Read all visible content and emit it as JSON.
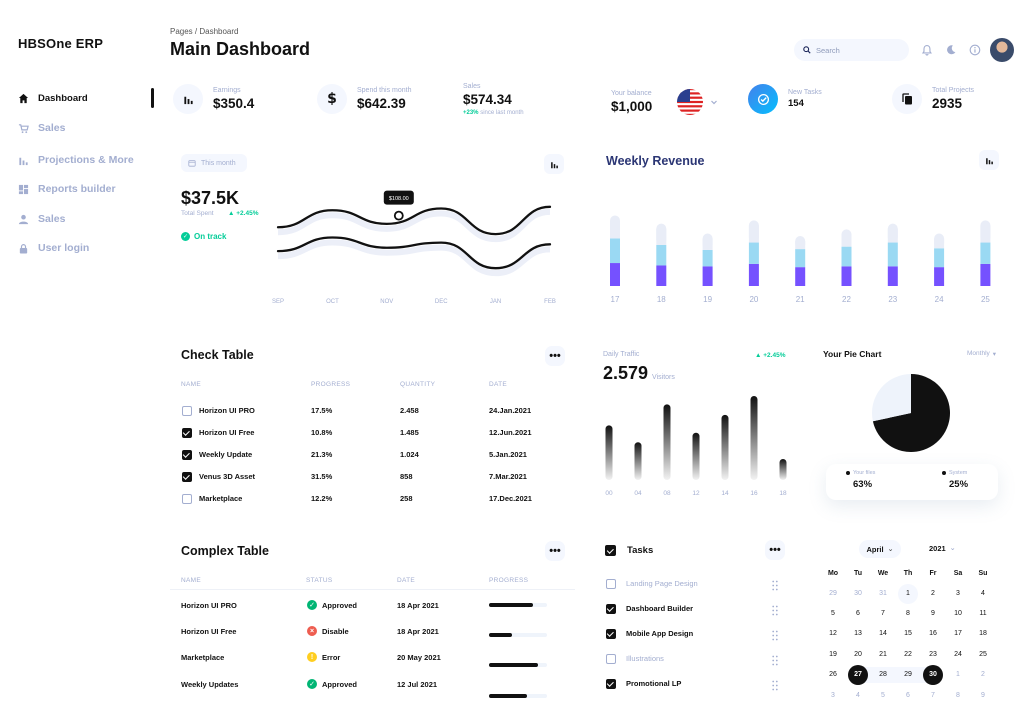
{
  "brand": "HBSOne ERP",
  "sidebar": {
    "items": [
      {
        "label": "Dashboard",
        "icon": "home-icon",
        "active": true
      },
      {
        "label": "Sales",
        "icon": "cart-icon"
      },
      {
        "label": "Projections & More",
        "icon": "bar-chart-icon"
      },
      {
        "label": "Reports builder",
        "icon": "grid-icon"
      },
      {
        "label": "Sales",
        "icon": "user-icon"
      },
      {
        "label": "User login",
        "icon": "lock-icon"
      }
    ]
  },
  "header": {
    "breadcrumb": "Pages / Dashboard",
    "title": "Main Dashboard",
    "search_placeholder": "Search"
  },
  "stats": [
    {
      "label": "Earnings",
      "value": "$350.4",
      "icon": "bar-chart-icon"
    },
    {
      "label": "Spend this month",
      "value": "$642.39",
      "icon": "dollar-icon"
    },
    {
      "label": "Sales",
      "value": "$574.34",
      "change": "+23%",
      "change_text": "since last month"
    },
    {
      "label": "Your balance",
      "value": "$1,000",
      "icon": "us-flag-icon"
    },
    {
      "label": "New Tasks",
      "value": "154",
      "icon": "check-circle-icon"
    },
    {
      "label": "Total Projects",
      "value": "2935",
      "icon": "copy-icon"
    }
  ],
  "this_month": {
    "range_label": "This month",
    "total": "$37.5K",
    "total_label": "Total Spent",
    "change": "+2.45%",
    "status": "On track",
    "tooltip": "$108.00",
    "chart_data": {
      "type": "line",
      "categories": [
        "SEP",
        "OCT",
        "NOV",
        "DEC",
        "JAN",
        "FEB"
      ],
      "series": [
        {
          "values": [
            18,
            28,
            20,
            29,
            14,
            30
          ]
        },
        {
          "values": [
            4,
            12,
            6,
            9,
            -6,
            8
          ]
        }
      ]
    }
  },
  "weekly_revenue": {
    "title": "Weekly Revenue",
    "chart_data": {
      "type": "bar",
      "stacked": true,
      "categories": [
        "17",
        "18",
        "19",
        "20",
        "21",
        "22",
        "23",
        "24",
        "25"
      ],
      "series": [
        {
          "color": "#7551ff",
          "values": [
            28,
            25,
            24,
            27,
            23,
            24,
            24,
            23,
            27
          ]
        },
        {
          "color": "#9ad9f3",
          "values": [
            30,
            25,
            20,
            26,
            22,
            24,
            29,
            23,
            26
          ]
        },
        {
          "color": "#e9edf7",
          "values": [
            28,
            26,
            20,
            27,
            16,
            21,
            23,
            18,
            27
          ]
        }
      ],
      "colors": [
        "#7551ff",
        "#9ad9f3",
        "#e9edf7"
      ]
    }
  },
  "check_table": {
    "title": "Check Table",
    "columns": [
      "NAME",
      "PROGRESS",
      "QUANTITY",
      "DATE"
    ],
    "rows": [
      {
        "checked": false,
        "name": "Horizon UI PRO",
        "progress": "17.5%",
        "quantity": "2.458",
        "date": "24.Jan.2021"
      },
      {
        "checked": true,
        "name": "Horizon UI Free",
        "progress": "10.8%",
        "quantity": "1.485",
        "date": "12.Jun.2021"
      },
      {
        "checked": true,
        "name": "Weekly Update",
        "progress": "21.3%",
        "quantity": "1.024",
        "date": "5.Jan.2021"
      },
      {
        "checked": true,
        "name": "Venus 3D Asset",
        "progress": "31.5%",
        "quantity": "858",
        "date": "7.Mar.2021"
      },
      {
        "checked": false,
        "name": "Marketplace",
        "progress": "12.2%",
        "quantity": "258",
        "date": "17.Dec.2021"
      }
    ]
  },
  "daily_traffic": {
    "label": "Daily Traffic",
    "value": "2.579",
    "unit": "Visitors",
    "change": "+2.45%",
    "chart_data": {
      "type": "bar",
      "categories": [
        "00",
        "04",
        "08",
        "12",
        "14",
        "16",
        "18"
      ],
      "values": [
        52,
        36,
        72,
        45,
        62,
        80,
        20
      ]
    }
  },
  "pie": {
    "title": "Your Pie Chart",
    "period": "Monthly",
    "chart_data": {
      "type": "pie",
      "slices": [
        {
          "label": "Your files",
          "value": 63,
          "color": "#111111"
        },
        {
          "label": "System",
          "value": 25,
          "color": "#eef3fb"
        }
      ]
    },
    "legend": [
      {
        "label": "Your files",
        "value": "63%"
      },
      {
        "label": "System",
        "value": "25%"
      }
    ]
  },
  "complex_table": {
    "title": "Complex Table",
    "columns": [
      "NAME",
      "STATUS",
      "DATE",
      "PROGRESS"
    ],
    "rows": [
      {
        "name": "Horizon UI PRO",
        "status": "Approved",
        "status_icon": "check-circle-icon",
        "status_color": "#01b574",
        "date": "18 Apr 2021",
        "progress": 0.75
      },
      {
        "name": "Horizon UI Free",
        "status": "Disable",
        "status_icon": "x-circle-icon",
        "status_color": "#ee5d50",
        "date": "18 Apr 2021",
        "progress": 0.4
      },
      {
        "name": "Marketplace",
        "status": "Error",
        "status_icon": "alert-circle-icon",
        "status_color": "#ffce20",
        "date": "20 May 2021",
        "progress": 0.85
      },
      {
        "name": "Weekly Updates",
        "status": "Approved",
        "status_icon": "check-circle-icon",
        "status_color": "#01b574",
        "date": "12 Jul 2021",
        "progress": 0.65
      }
    ]
  },
  "tasks": {
    "title": "Tasks",
    "items": [
      {
        "label": "Landing Page Design",
        "checked": false
      },
      {
        "label": "Dashboard Builder",
        "checked": true
      },
      {
        "label": "Mobile App Design",
        "checked": true
      },
      {
        "label": "Illustrations",
        "checked": false
      },
      {
        "label": "Promotional LP",
        "checked": true
      }
    ]
  },
  "calendar": {
    "month": "April",
    "year": "2021",
    "weekdays": [
      "Mo",
      "Tu",
      "We",
      "Th",
      "Fr",
      "Sa",
      "Su"
    ],
    "weeks": [
      [
        {
          "d": "29",
          "dim": true
        },
        {
          "d": "30",
          "dim": true
        },
        {
          "d": "31",
          "dim": true
        },
        {
          "d": "1",
          "range": true
        },
        {
          "d": "2"
        },
        {
          "d": "3"
        },
        {
          "d": "4"
        }
      ],
      [
        {
          "d": "5"
        },
        {
          "d": "6"
        },
        {
          "d": "7"
        },
        {
          "d": "8"
        },
        {
          "d": "9"
        },
        {
          "d": "10"
        },
        {
          "d": "11"
        }
      ],
      [
        {
          "d": "12"
        },
        {
          "d": "13"
        },
        {
          "d": "14"
        },
        {
          "d": "15"
        },
        {
          "d": "16"
        },
        {
          "d": "17"
        },
        {
          "d": "18"
        }
      ],
      [
        {
          "d": "19"
        },
        {
          "d": "20"
        },
        {
          "d": "21"
        },
        {
          "d": "22"
        },
        {
          "d": "23"
        },
        {
          "d": "24"
        },
        {
          "d": "25"
        }
      ],
      [
        {
          "d": "26"
        },
        {
          "d": "27",
          "sel": true
        },
        {
          "d": "28",
          "range": true
        },
        {
          "d": "29",
          "range": true
        },
        {
          "d": "30",
          "sel": true
        },
        {
          "d": "1",
          "dim": true
        },
        {
          "d": "2",
          "dim": true
        }
      ],
      [
        {
          "d": "3",
          "dim": true
        },
        {
          "d": "4",
          "dim": true
        },
        {
          "d": "5",
          "dim": true
        },
        {
          "d": "6",
          "dim": true
        },
        {
          "d": "7",
          "dim": true
        },
        {
          "d": "8",
          "dim": true
        },
        {
          "d": "9",
          "dim": true
        }
      ]
    ]
  }
}
